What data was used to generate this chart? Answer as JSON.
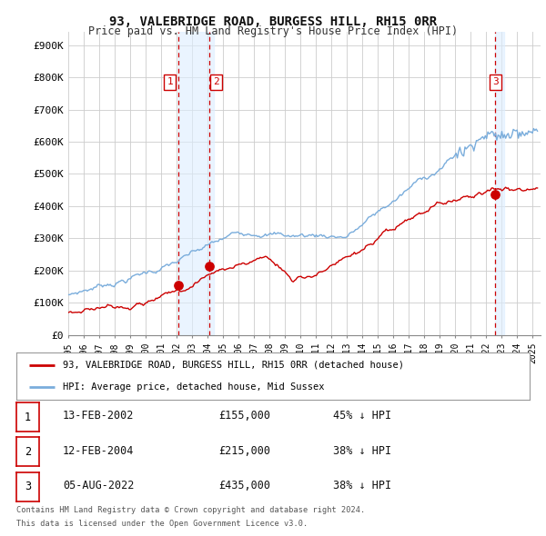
{
  "title": "93, VALEBRIDGE ROAD, BURGESS HILL, RH15 0RR",
  "subtitle": "Price paid vs. HM Land Registry's House Price Index (HPI)",
  "ylabel_ticks": [
    "£0",
    "£100K",
    "£200K",
    "£300K",
    "£400K",
    "£500K",
    "£600K",
    "£700K",
    "£800K",
    "£900K"
  ],
  "ytick_values": [
    0,
    100000,
    200000,
    300000,
    400000,
    500000,
    600000,
    700000,
    800000,
    900000
  ],
  "ylim": [
    0,
    940000
  ],
  "background_color": "#ffffff",
  "grid_color": "#cccccc",
  "hpi_color": "#7aaddc",
  "price_color": "#cc0000",
  "transaction_color": "#cc0000",
  "shade_color": "#ddeeff",
  "transactions": [
    {
      "date": 2002.12,
      "price": 155000,
      "label": "1"
    },
    {
      "date": 2004.12,
      "price": 215000,
      "label": "2"
    },
    {
      "date": 2022.58,
      "price": 435000,
      "label": "3"
    }
  ],
  "legend_entries": [
    "93, VALEBRIDGE ROAD, BURGESS HILL, RH15 0RR (detached house)",
    "HPI: Average price, detached house, Mid Sussex"
  ],
  "table_rows": [
    {
      "num": "1",
      "date": "13-FEB-2002",
      "price": "£155,000",
      "change": "45% ↓ HPI"
    },
    {
      "num": "2",
      "date": "12-FEB-2004",
      "price": "£215,000",
      "change": "38% ↓ HPI"
    },
    {
      "num": "3",
      "date": "05-AUG-2022",
      "price": "£435,000",
      "change": "38% ↓ HPI"
    }
  ],
  "footer": [
    "Contains HM Land Registry data © Crown copyright and database right 2024.",
    "This data is licensed under the Open Government Licence v3.0."
  ],
  "xmin": 1995,
  "xmax": 2025.5
}
